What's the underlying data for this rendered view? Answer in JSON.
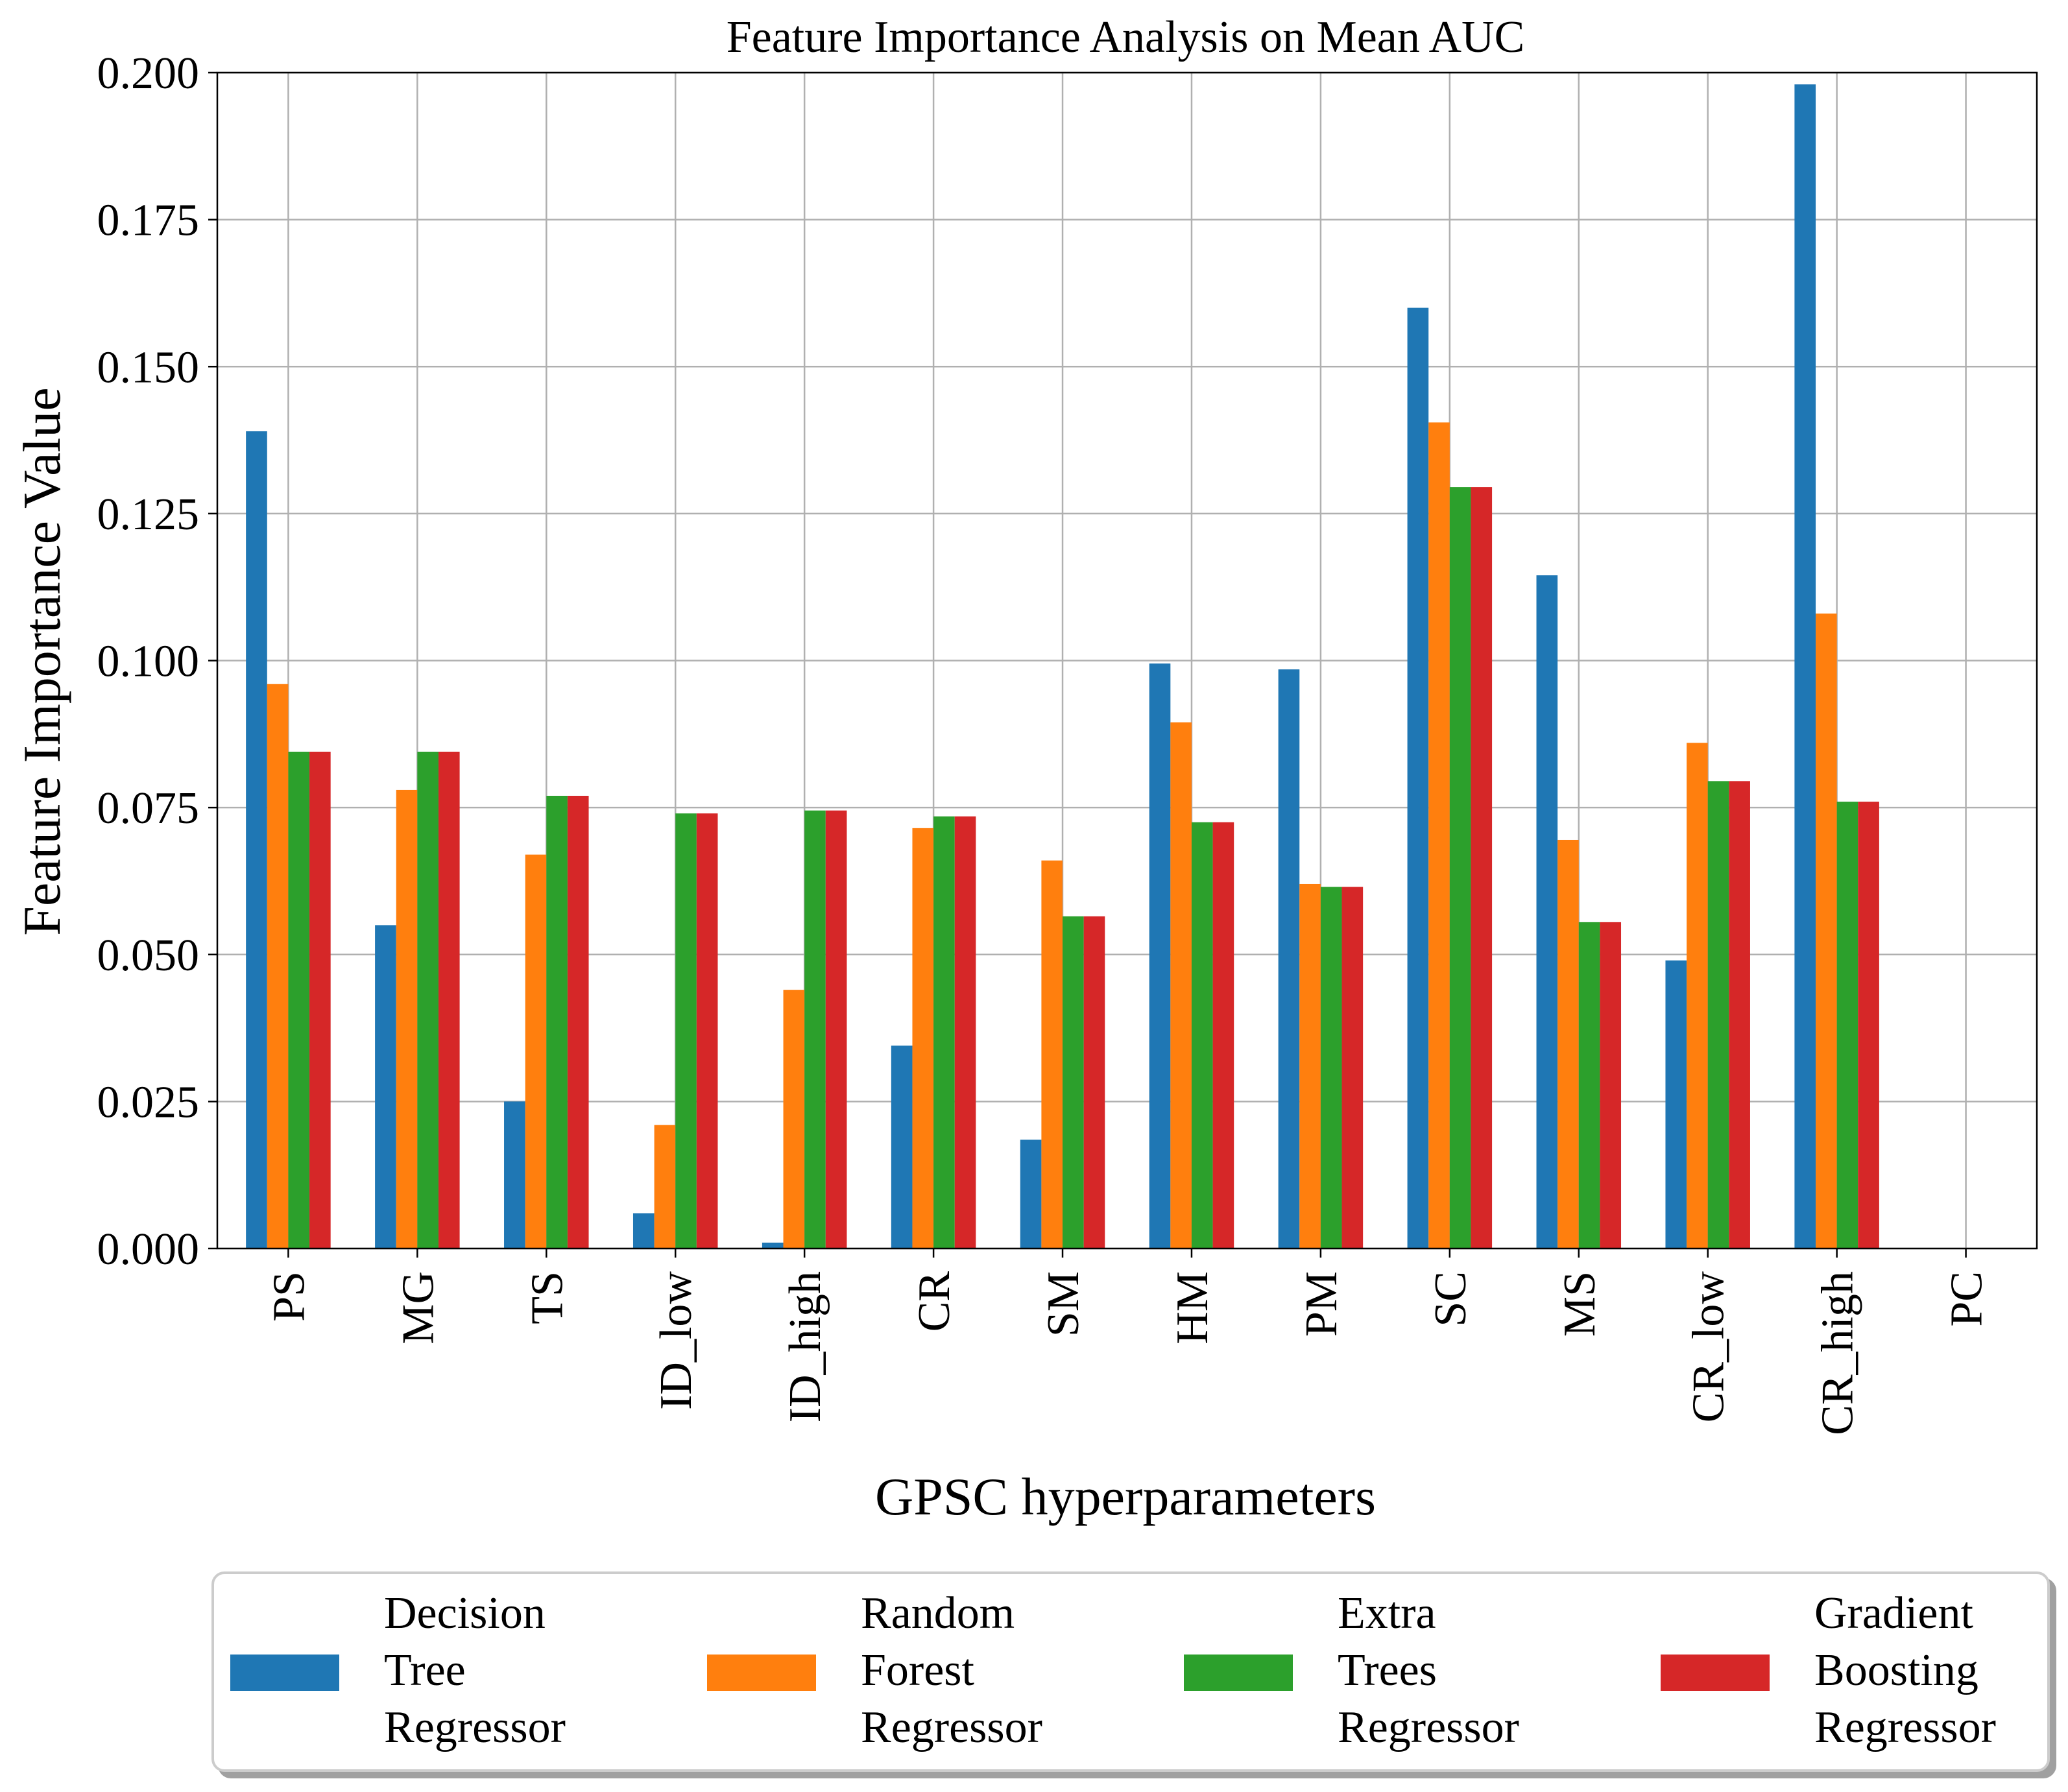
{
  "chart_data": {
    "type": "bar",
    "title": "Feature Importance Analysis on Mean AUC",
    "xlabel": "GPSC hyperparameters",
    "ylabel": "Feature Importance Value",
    "ylim": [
      0,
      0.2
    ],
    "yticks": [
      "0.000",
      "0.025",
      "0.050",
      "0.075",
      "0.100",
      "0.125",
      "0.150",
      "0.175",
      "0.200"
    ],
    "grid": true,
    "legend_position": "bottom-outside",
    "categories": [
      "PS",
      "MG",
      "TS",
      "ID_low",
      "ID_high",
      "CR",
      "SM",
      "HM",
      "PM",
      "SC",
      "MS",
      "CR_low",
      "CR_high",
      "PC"
    ],
    "series": [
      {
        "name": "Decision\nTree\nRegressor",
        "color": "#1f77b4",
        "values": [
          0.139,
          0.055,
          0.025,
          0.006,
          0.001,
          0.0345,
          0.0185,
          0.0995,
          0.0985,
          0.16,
          0.1145,
          0.049,
          0.198,
          0.0
        ]
      },
      {
        "name": "Random\nForest\nRegressor",
        "color": "#ff7f0e",
        "values": [
          0.096,
          0.078,
          0.067,
          0.021,
          0.044,
          0.0715,
          0.066,
          0.0895,
          0.062,
          0.1405,
          0.0695,
          0.086,
          0.108,
          0.0
        ]
      },
      {
        "name": "Extra\nTrees\nRegressor",
        "color": "#2ca02c",
        "values": [
          0.0845,
          0.0845,
          0.077,
          0.074,
          0.0745,
          0.0735,
          0.0565,
          0.0725,
          0.0615,
          0.1295,
          0.0555,
          0.0795,
          0.076,
          0.0
        ]
      },
      {
        "name": "Gradient\nBoosting\nRegressor",
        "color": "#d62728",
        "values": [
          0.0845,
          0.0845,
          0.077,
          0.074,
          0.0745,
          0.0735,
          0.0565,
          0.0725,
          0.0615,
          0.1295,
          0.0555,
          0.0795,
          0.076,
          0.0
        ]
      }
    ]
  }
}
